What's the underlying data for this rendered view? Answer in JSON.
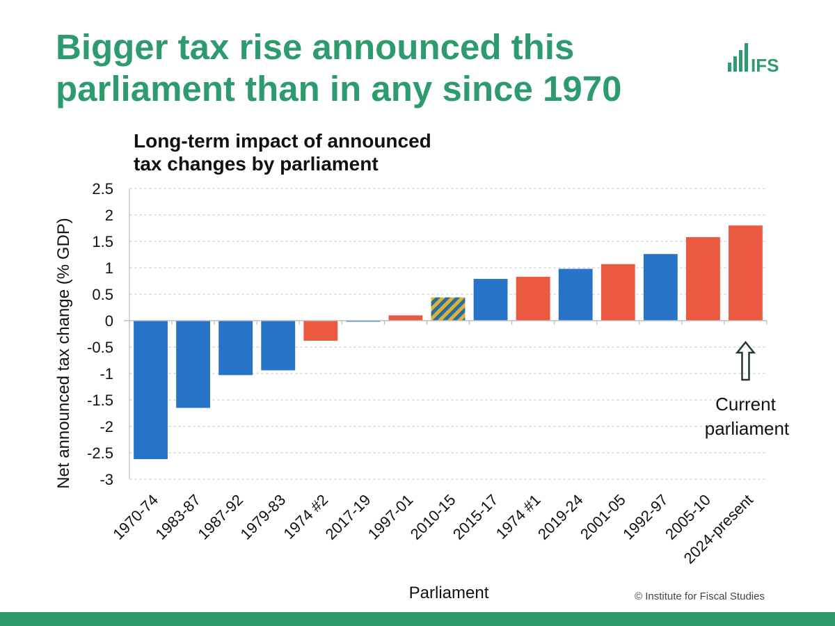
{
  "headline_line1": "Bigger tax rise announced this",
  "headline_line2": "parliament than in any since 1970",
  "logo_text": "IFS",
  "copyright": "© Institute for Fiscal Studies",
  "colors": {
    "headline": "#2e9b6e",
    "conservative": "#2673c8",
    "labour": "#ea5a40",
    "coalition_a": "#2d6ba0",
    "coalition_b": "#d8b43a",
    "annotation_arrow": "#1f3b2a"
  },
  "chart_data": {
    "type": "bar",
    "title_line1": "Long-term impact of announced",
    "title_line2": "tax changes by parliament",
    "xlabel": "Parliament",
    "ylabel": "Net announced tax change (% GDP)",
    "ylim": [
      -3,
      2.5
    ],
    "yticks": [
      "2.5",
      "2",
      "1.5",
      "1",
      "0.5",
      "0",
      "-0.5",
      "-1",
      "-1.5",
      "-2",
      "-2.5",
      "-3"
    ],
    "grid": true,
    "categories": [
      "1970-74",
      "1983-87",
      "1987-92",
      "1979-83",
      "1974 #2",
      "2017-19",
      "1997-01",
      "2010-15",
      "2015-17",
      "1974 #1",
      "2019-24",
      "2001-05",
      "1992-97",
      "2005-10",
      "2024-present"
    ],
    "values": [
      -2.62,
      -1.65,
      -1.03,
      -0.94,
      -0.38,
      -0.01,
      0.1,
      0.44,
      0.79,
      0.83,
      0.98,
      1.07,
      1.26,
      1.58,
      1.8
    ],
    "party": [
      "conservative",
      "conservative",
      "conservative",
      "conservative",
      "labour",
      "conservative",
      "labour",
      "coalition",
      "conservative",
      "labour",
      "conservative",
      "labour",
      "conservative",
      "labour",
      "labour"
    ],
    "annotation": {
      "category": "2024-present",
      "line1": "Current",
      "line2": "parliament"
    }
  }
}
